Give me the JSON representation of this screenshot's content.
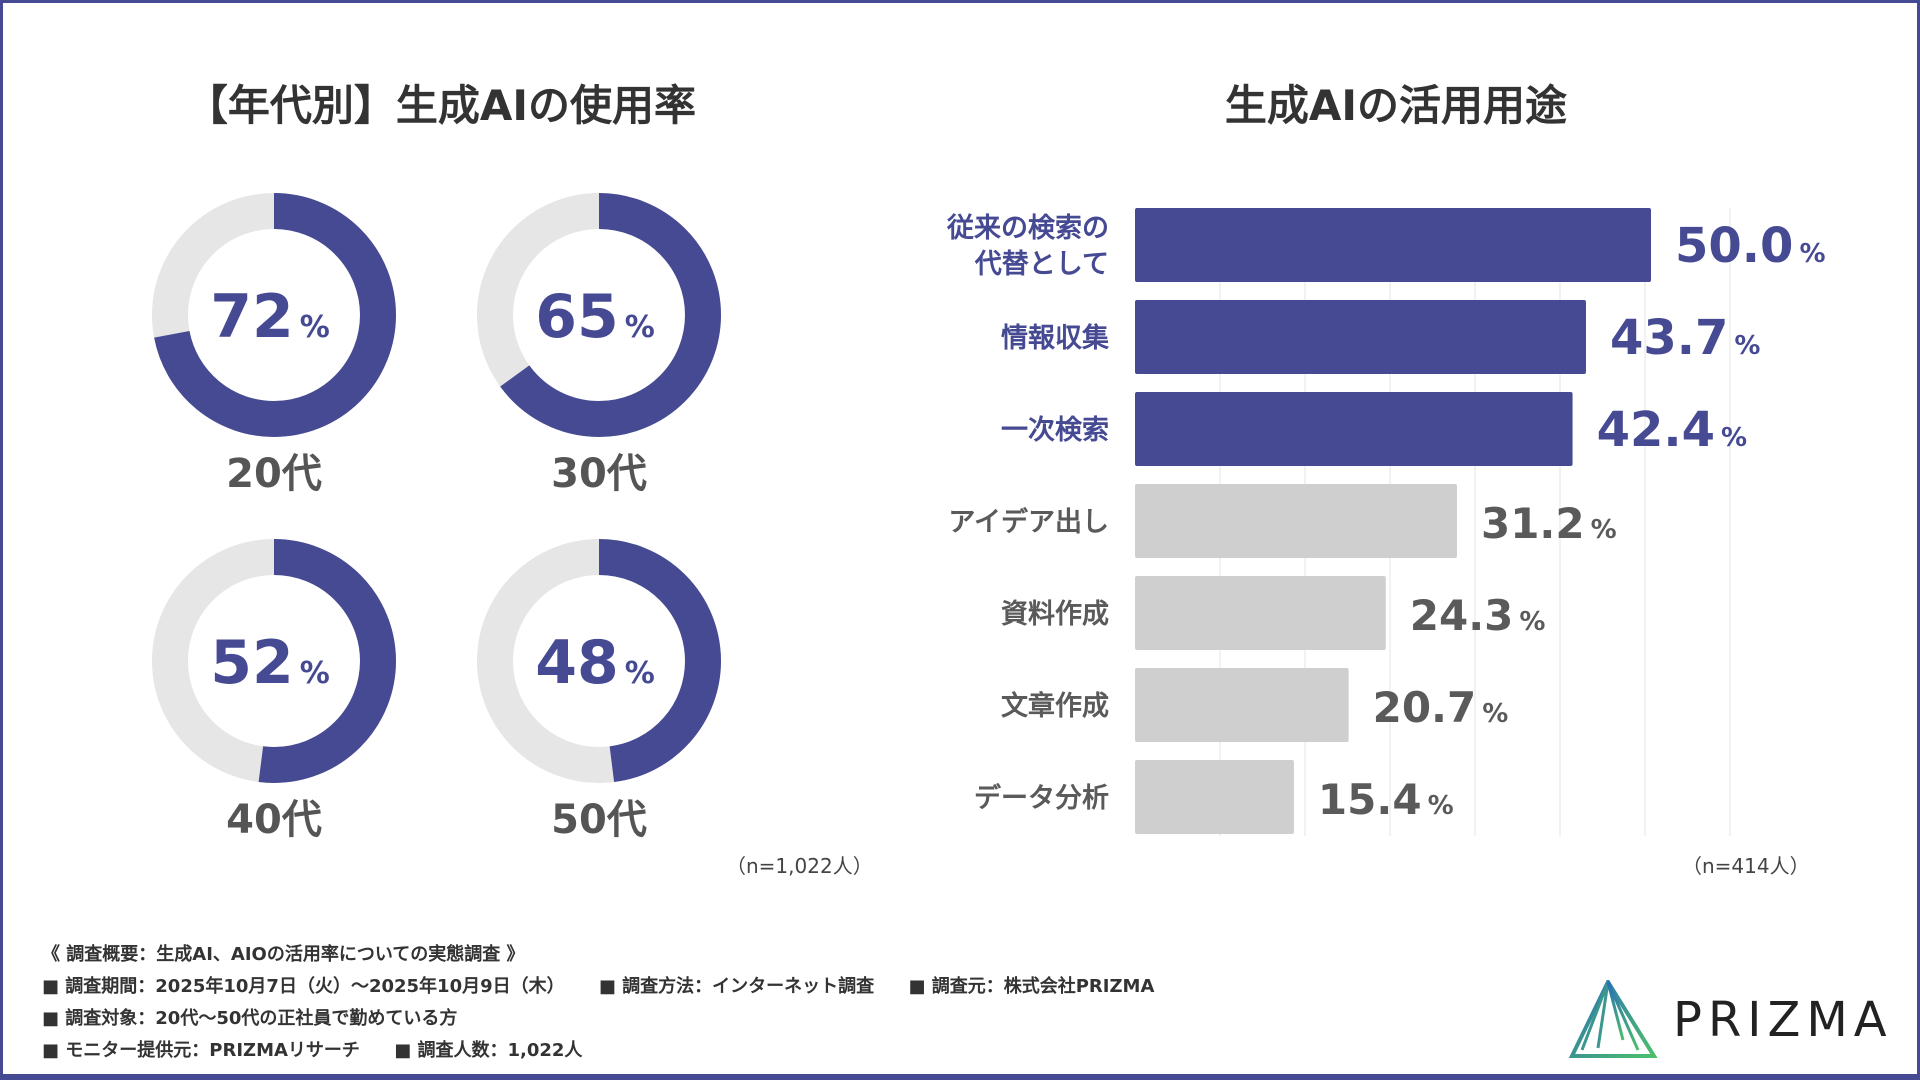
{
  "chart_data": [
    {
      "type": "pie",
      "variant": "donut",
      "title": "【年代別】生成AIの使用率",
      "categories": [
        "20代",
        "30代",
        "40代",
        "50代"
      ],
      "values": [
        72,
        65,
        52,
        48
      ],
      "unit": "%",
      "note": "（n=1,022人）",
      "colors": {
        "filled": "#454a93",
        "remaining": "#e6e6e6"
      }
    },
    {
      "type": "bar",
      "orientation": "horizontal",
      "title": "生成AIの活用用途",
      "categories": [
        "従来の検索の\n代替として",
        "情報収集",
        "一次検索",
        "アイデア出し",
        "資料作成",
        "文章作成",
        "データ分析"
      ],
      "values": [
        50.0,
        43.7,
        42.4,
        31.2,
        24.3,
        20.7,
        15.4
      ],
      "value_labels": [
        "50.0",
        "43.7",
        "42.4",
        "31.2",
        "24.3",
        "20.7",
        "15.4"
      ],
      "unit": "%",
      "highlight_count": 3,
      "grid": true,
      "note": "（n=414人）",
      "colors": {
        "highlight": "#454a93",
        "normal": "#cfcfcf",
        "highlight_text": "#454a93",
        "normal_text": "#5a5a5a"
      }
    }
  ],
  "footer": {
    "heading": "《 調査概要：生成AI、AIOの活用率についての実態調査 》",
    "lines": [
      [
        "■ 調査期間：2025年10月7日（火）～2025年10月9日（木）",
        "■ 調査方法：インターネット調査",
        "■ 調査元：株式会社PRIZMA"
      ],
      [
        "■ 調査対象：20代～50代の正社員で勤めている方"
      ],
      [
        "■ モニター提供元：PRIZMAリサーチ",
        "■ 調査人数：1,022人"
      ]
    ]
  },
  "logo": {
    "text": "PRIZMA"
  }
}
